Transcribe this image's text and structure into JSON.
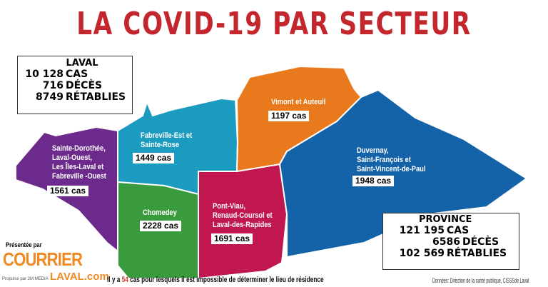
{
  "title": "LA COVID-19 PAR SECTEUR",
  "laval": {
    "title": "LAVAL",
    "rows": [
      {
        "value": "10 128",
        "label": "CAS"
      },
      {
        "value": "716",
        "label": "DÉCÈS"
      },
      {
        "value": "8749",
        "label": "RÉTABLIES"
      }
    ]
  },
  "province": {
    "title": "PROVINCE",
    "rows": [
      {
        "value": "121 195",
        "label": "CAS"
      },
      {
        "value": "6586",
        "label": "DÉCÈS"
      },
      {
        "value": "102 569",
        "label": "RÉTABLIES"
      }
    ]
  },
  "colors": {
    "title": "#c4262e",
    "purple": "#6b2a8c",
    "teal": "#1b9bbf",
    "green": "#3a9b3e",
    "magenta": "#c0174f",
    "orange": "#e8791c",
    "blue": "#1462a8",
    "brand": "#f08a24"
  },
  "sectors": [
    {
      "name": "Sainte-Dorothée,\nLaval-Ouest,\nLes Îles-Laval et\nFabreville -Ouest",
      "cases": "1561 cas"
    },
    {
      "name": "Fabreville-Est et\nSainte-Rose",
      "cases": "1449 cas"
    },
    {
      "name": "Chomedey",
      "cases": "2228 cas"
    },
    {
      "name": "Pont-Viau,\nRenaud-Coursol et\nLaval-des-Rapides",
      "cases": "1691 cas"
    },
    {
      "name": "Vimont et Auteuil",
      "cases": "1197 cas"
    },
    {
      "name": "Duvernay,\nSaint-François et\nSaint-Vincent-de-Paul",
      "cases": "1948 cas"
    }
  ],
  "footer": {
    "pre": "Il y a ",
    "count": "54",
    "post": " cas pour lesquels il est impossible de déterminer le lieu de résidence"
  },
  "source": "Données: Direction de la santé publique, CISSSde Laval",
  "branding": {
    "presented_by": "Présentée par",
    "logo_top": "COURRIER",
    "logo_bottom": "LAVAL.com",
    "logo_small": "Propulsé par 2M.MEDIA"
  }
}
